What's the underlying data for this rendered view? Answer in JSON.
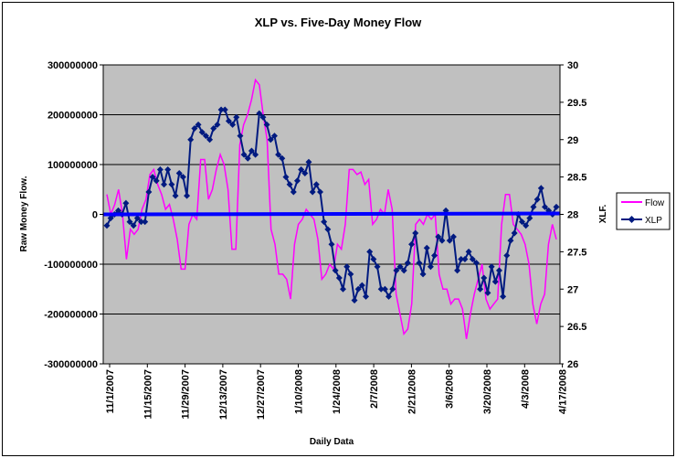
{
  "chart_data": {
    "type": "line",
    "title": "XLP vs. Five-Day Money Flow",
    "xlabel": "Daily Data",
    "ylabel_left": "Raw Money Flow.",
    "ylabel_right": "XLF.",
    "y_left_range": [
      -300000000,
      300000000
    ],
    "y_left_ticks": [
      "300000000",
      "200000000",
      "100000000",
      "0",
      "-100000000",
      "-200000000",
      "-300000000"
    ],
    "y_right_range": [
      26,
      30
    ],
    "y_right_ticks": [
      "30",
      "29.5",
      "29",
      "28.5",
      "28",
      "27.5",
      "27",
      "26.5",
      "26"
    ],
    "x_ticks": [
      "11/1/2007",
      "11/15/2007",
      "11/29/2007",
      "12/13/2007",
      "12/27/2007",
      "1/10/2008",
      "1/24/2008",
      "2/7/2008",
      "2/21/2008",
      "3/6/2008",
      "3/20/2008",
      "4/3/2008",
      "4/17/2008"
    ],
    "gridlines": true,
    "legend_position": "right",
    "zero_line_color": "#0000ff",
    "series": [
      {
        "name": "Flow",
        "axis": "left",
        "color": "#ff00ff",
        "marker": "none",
        "values": [
          40000000,
          0,
          20000000,
          50000000,
          0,
          -90000000,
          -30000000,
          -40000000,
          -30000000,
          10000000,
          30000000,
          80000000,
          90000000,
          60000000,
          40000000,
          10000000,
          20000000,
          -10000000,
          -50000000,
          -110000000,
          -110000000,
          -20000000,
          0,
          -10000000,
          110000000,
          110000000,
          30000000,
          50000000,
          90000000,
          120000000,
          100000000,
          50000000,
          -70000000,
          -70000000,
          140000000,
          180000000,
          200000000,
          230000000,
          270000000,
          260000000,
          200000000,
          150000000,
          -30000000,
          -60000000,
          -120000000,
          -120000000,
          -130000000,
          -170000000,
          -60000000,
          -20000000,
          -10000000,
          10000000,
          0,
          -10000000,
          -50000000,
          -130000000,
          -120000000,
          -100000000,
          -110000000,
          -60000000,
          -70000000,
          -20000000,
          90000000,
          90000000,
          80000000,
          85000000,
          60000000,
          70000000,
          -20000000,
          -10000000,
          10000000,
          0,
          50000000,
          10000000,
          -160000000,
          -200000000,
          -240000000,
          -230000000,
          -180000000,
          -20000000,
          -10000000,
          -20000000,
          0,
          -10000000,
          0,
          -120000000,
          -150000000,
          -150000000,
          -180000000,
          -170000000,
          -170000000,
          -190000000,
          -250000000,
          -200000000,
          -160000000,
          -130000000,
          -100000000,
          -170000000,
          -190000000,
          -180000000,
          -170000000,
          -20000000,
          40000000,
          40000000,
          -20000000,
          -30000000,
          -40000000,
          -60000000,
          -100000000,
          -180000000,
          -220000000,
          -180000000,
          -160000000,
          -60000000,
          -20000000,
          -50000000
        ]
      },
      {
        "name": "XLP",
        "axis": "right",
        "color": "#001a80",
        "marker": "diamond",
        "values": [
          27.85,
          27.95,
          28.0,
          28.05,
          28.0,
          28.15,
          27.9,
          27.85,
          27.95,
          27.9,
          27.9,
          28.3,
          28.5,
          28.45,
          28.6,
          28.4,
          28.6,
          28.4,
          28.25,
          28.55,
          28.5,
          28.25,
          29.0,
          29.15,
          29.2,
          29.1,
          29.05,
          29.0,
          29.15,
          29.2,
          29.4,
          29.4,
          29.25,
          29.2,
          29.3,
          29.05,
          28.8,
          28.75,
          28.85,
          28.8,
          29.35,
          29.3,
          29.2,
          29.0,
          29.05,
          28.8,
          28.75,
          28.5,
          28.4,
          28.3,
          28.45,
          28.6,
          28.55,
          28.7,
          28.3,
          28.4,
          28.3,
          27.9,
          27.8,
          27.6,
          27.25,
          27.15,
          27.0,
          27.3,
          27.2,
          26.85,
          27.0,
          27.05,
          26.9,
          27.5,
          27.4,
          27.3,
          27.0,
          27.0,
          26.9,
          27.0,
          27.25,
          27.3,
          27.25,
          27.35,
          27.6,
          27.75,
          27.35,
          27.2,
          27.55,
          27.3,
          27.45,
          27.7,
          27.65,
          28.05,
          27.65,
          27.7,
          27.25,
          27.4,
          27.4,
          27.5,
          27.4,
          27.35,
          27.0,
          27.15,
          26.95,
          27.3,
          27.1,
          27.25,
          26.9,
          27.45,
          27.65,
          27.75,
          28.0,
          27.9,
          27.85,
          27.95,
          28.1,
          28.2,
          28.35,
          28.1,
          28.05,
          28.0,
          28.1
        ]
      }
    ],
    "legend": [
      "Flow",
      "XLP"
    ]
  }
}
